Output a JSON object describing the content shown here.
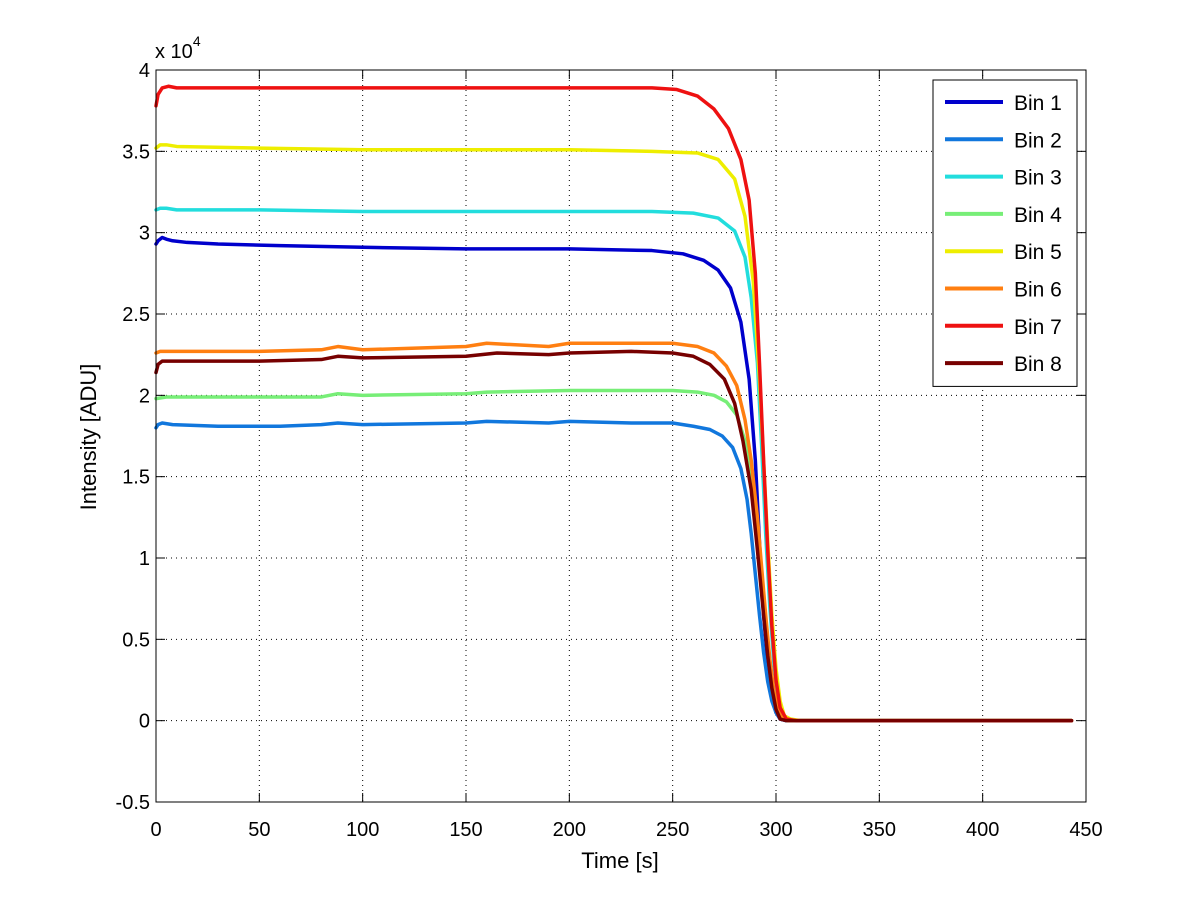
{
  "chart_data": {
    "type": "line",
    "title": "",
    "xlabel": "Time [s]",
    "ylabel": "Intensity [ADU]",
    "y_multiplier_label": "x 10",
    "y_multiplier_exponent": "4",
    "xlim": [
      0,
      450
    ],
    "ylim": [
      -0.5,
      4
    ],
    "xticks": [
      0,
      50,
      100,
      150,
      200,
      250,
      300,
      350,
      400,
      450
    ],
    "yticks": [
      -0.5,
      0,
      0.5,
      1,
      1.5,
      2,
      2.5,
      3,
      3.5,
      4
    ],
    "xtick_labels": [
      "0",
      "50",
      "100",
      "150",
      "200",
      "250",
      "300",
      "350",
      "400",
      "450"
    ],
    "ytick_labels": [
      "-0.5",
      "0",
      "0.5",
      "1",
      "1.5",
      "2",
      "2.5",
      "3",
      "3.5",
      "4"
    ],
    "grid": true,
    "legend_position": "top-right",
    "series": [
      {
        "name": "Bin 1",
        "color": "#0000CC",
        "x": [
          0,
          1,
          3,
          5,
          8,
          15,
          30,
          60,
          100,
          150,
          200,
          240,
          255,
          265,
          272,
          278,
          283,
          287,
          290,
          292,
          294,
          296,
          298,
          300,
          302,
          305,
          310,
          320,
          350,
          400,
          443
        ],
        "y": [
          2.93,
          2.95,
          2.97,
          2.96,
          2.95,
          2.94,
          2.93,
          2.92,
          2.91,
          2.9,
          2.9,
          2.89,
          2.87,
          2.83,
          2.77,
          2.66,
          2.45,
          2.1,
          1.6,
          1.1,
          0.65,
          0.35,
          0.15,
          0.05,
          0.01,
          0.0,
          0.0,
          0.0,
          0.0,
          0.0,
          0.0
        ]
      },
      {
        "name": "Bin 2",
        "color": "#1177DD",
        "x": [
          0,
          1,
          3,
          8,
          30,
          60,
          80,
          88,
          100,
          150,
          160,
          190,
          200,
          230,
          250,
          260,
          268,
          274,
          279,
          283,
          286,
          288,
          290,
          292,
          294,
          296,
          298,
          300,
          302,
          305,
          310,
          320,
          350,
          400,
          443
        ],
        "y": [
          1.8,
          1.82,
          1.83,
          1.82,
          1.81,
          1.81,
          1.82,
          1.83,
          1.82,
          1.83,
          1.84,
          1.83,
          1.84,
          1.83,
          1.83,
          1.81,
          1.79,
          1.75,
          1.68,
          1.55,
          1.36,
          1.15,
          0.9,
          0.65,
          0.42,
          0.24,
          0.12,
          0.05,
          0.01,
          0.0,
          0.0,
          0.0,
          0.0,
          0.0,
          0.0
        ]
      },
      {
        "name": "Bin 3",
        "color": "#22DDDD",
        "x": [
          0,
          2,
          5,
          10,
          50,
          100,
          150,
          200,
          240,
          260,
          272,
          280,
          285,
          288,
          291,
          293,
          295,
          297,
          299,
          301,
          303,
          306,
          310,
          320,
          350,
          400,
          443
        ],
        "y": [
          3.14,
          3.15,
          3.15,
          3.14,
          3.14,
          3.13,
          3.13,
          3.13,
          3.13,
          3.12,
          3.09,
          3.01,
          2.85,
          2.6,
          2.2,
          1.7,
          1.15,
          0.7,
          0.35,
          0.14,
          0.04,
          0.0,
          0.0,
          0.0,
          0.0,
          0.0,
          0.0
        ]
      },
      {
        "name": "Bin 4",
        "color": "#77EE77",
        "x": [
          0,
          5,
          50,
          80,
          88,
          100,
          150,
          160,
          200,
          230,
          250,
          262,
          270,
          276,
          281,
          285,
          288,
          290,
          292,
          294,
          296,
          298,
          300,
          302,
          305,
          310,
          320,
          350,
          400,
          443
        ],
        "y": [
          1.98,
          1.99,
          1.99,
          1.99,
          2.01,
          2.0,
          2.01,
          2.02,
          2.03,
          2.03,
          2.03,
          2.02,
          2.0,
          1.96,
          1.88,
          1.72,
          1.5,
          1.25,
          0.98,
          0.7,
          0.45,
          0.25,
          0.11,
          0.03,
          0.0,
          0.0,
          0.0,
          0.0,
          0.0,
          0.0
        ]
      },
      {
        "name": "Bin 5",
        "color": "#EEEE00",
        "x": [
          0,
          2,
          5,
          10,
          50,
          100,
          150,
          200,
          240,
          262,
          272,
          280,
          285,
          289,
          292,
          294,
          296,
          298,
          300,
          302,
          304,
          307,
          312,
          320,
          350,
          400,
          443
        ],
        "y": [
          3.52,
          3.54,
          3.54,
          3.53,
          3.52,
          3.51,
          3.51,
          3.51,
          3.5,
          3.49,
          3.45,
          3.33,
          3.1,
          2.7,
          2.1,
          1.6,
          1.1,
          0.65,
          0.32,
          0.12,
          0.03,
          0.01,
          0.0,
          0.0,
          0.0,
          0.0,
          0.0
        ]
      },
      {
        "name": "Bin 6",
        "color": "#FF7F11",
        "x": [
          0,
          2,
          5,
          50,
          80,
          88,
          100,
          150,
          160,
          190,
          200,
          230,
          250,
          262,
          270,
          276,
          281,
          285,
          288,
          291,
          293,
          295,
          297,
          299,
          301,
          303,
          306,
          312,
          320,
          350,
          400,
          443
        ],
        "y": [
          2.26,
          2.27,
          2.27,
          2.27,
          2.28,
          2.3,
          2.28,
          2.3,
          2.32,
          2.3,
          2.32,
          2.32,
          2.32,
          2.3,
          2.26,
          2.18,
          2.06,
          1.85,
          1.6,
          1.25,
          0.95,
          0.65,
          0.38,
          0.18,
          0.06,
          0.01,
          0.0,
          0.0,
          0.0,
          0.0,
          0.0,
          0.0
        ]
      },
      {
        "name": "Bin 7",
        "color": "#EE1111",
        "x": [
          0,
          1,
          3,
          6,
          10,
          50,
          100,
          150,
          200,
          240,
          252,
          262,
          270,
          277,
          283,
          287,
          290,
          292,
          294,
          296,
          298,
          300,
          302,
          305,
          310,
          320,
          350,
          400,
          443
        ],
        "y": [
          3.78,
          3.85,
          3.89,
          3.9,
          3.89,
          3.89,
          3.89,
          3.89,
          3.89,
          3.89,
          3.88,
          3.84,
          3.76,
          3.64,
          3.45,
          3.2,
          2.75,
          2.2,
          1.6,
          1.05,
          0.58,
          0.25,
          0.08,
          0.01,
          0.0,
          0.0,
          0.0,
          0.0,
          0.0
        ]
      },
      {
        "name": "Bin 8",
        "color": "#770000",
        "x": [
          0,
          1,
          3,
          8,
          50,
          80,
          88,
          100,
          150,
          165,
          190,
          200,
          230,
          250,
          260,
          268,
          275,
          280,
          284,
          288,
          291,
          294,
          296,
          298,
          300,
          302,
          305,
          310,
          320,
          350,
          400,
          443
        ],
        "y": [
          2.14,
          2.19,
          2.21,
          2.21,
          2.21,
          2.22,
          2.24,
          2.23,
          2.24,
          2.26,
          2.25,
          2.26,
          2.27,
          2.26,
          2.24,
          2.19,
          2.1,
          1.95,
          1.72,
          1.42,
          1.05,
          0.65,
          0.4,
          0.2,
          0.07,
          0.01,
          0.0,
          0.0,
          0.0,
          0.0,
          0.0,
          0.0
        ]
      }
    ]
  }
}
